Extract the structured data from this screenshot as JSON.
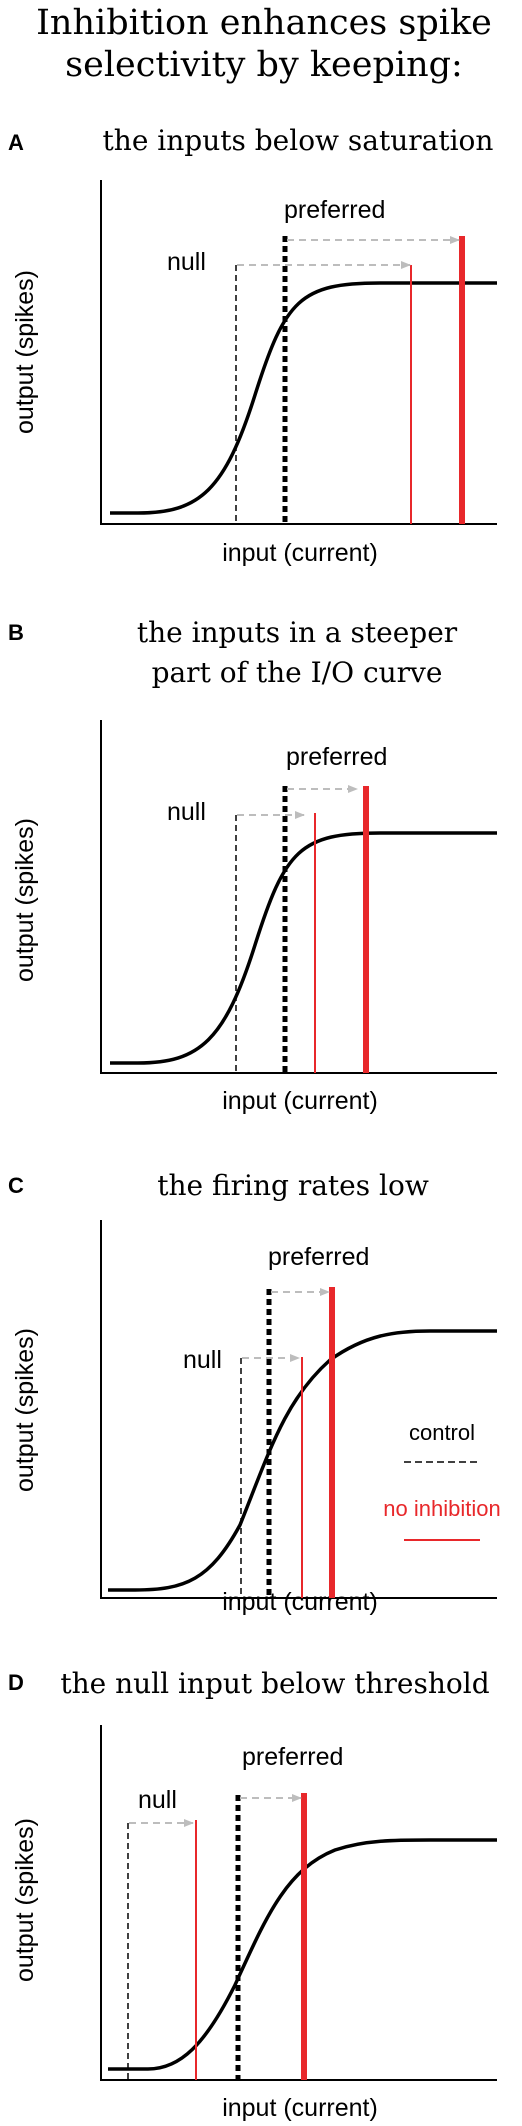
{
  "figure": {
    "title_line1": "Inhibition enhances spike",
    "title_line2": "selectivity by keeping:"
  },
  "colors": {
    "control": "#000000",
    "no_inhibition": "#e8282b",
    "shift_arrow": "#bdbdbd"
  },
  "panels": [
    {
      "letter": "A",
      "subtitle_lines": [
        "the inputs below saturation"
      ],
      "ylabel": "output (spikes)",
      "xlabel": "input (current)",
      "null_label": "null",
      "preferred_label": "preferred"
    },
    {
      "letter": "B",
      "subtitle_lines": [
        "the inputs in a steeper",
        "part of the I/O curve"
      ],
      "ylabel": "output (spikes)",
      "xlabel": "input (current)",
      "null_label": "null",
      "preferred_label": "preferred"
    },
    {
      "letter": "C",
      "subtitle_lines": [
        "the firing rates low"
      ],
      "ylabel": "output (spikes)",
      "xlabel": "input (current)",
      "null_label": "null",
      "preferred_label": "preferred",
      "legend": {
        "control_label": "control",
        "no_inhibition_label": "no inhibition"
      }
    },
    {
      "letter": "D",
      "subtitle_lines": [
        "the null input below threshold"
      ],
      "ylabel": "output (spikes)",
      "xlabel": "input (current)",
      "null_label": "null",
      "preferred_label": "preferred"
    }
  ]
}
